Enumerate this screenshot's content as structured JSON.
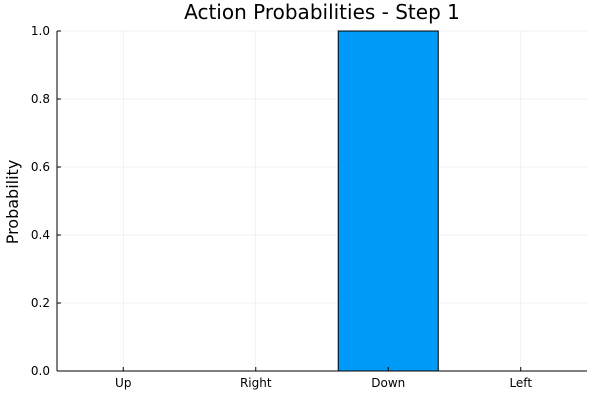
{
  "chart_data": {
    "type": "bar",
    "title": "Action Probabilities - Step 1",
    "xlabel": "",
    "ylabel": "Probability",
    "categories": [
      "Up",
      "Right",
      "Down",
      "Left"
    ],
    "values": [
      0.0,
      0.0,
      1.0,
      0.0
    ],
    "ylim": [
      0,
      1
    ],
    "yticks": [
      0.0,
      0.2,
      0.4,
      0.6,
      0.8,
      1.0
    ],
    "ytick_labels": [
      "0.0",
      "0.2",
      "0.4",
      "0.6",
      "0.8",
      "1.0"
    ],
    "grid": true,
    "legend": false,
    "bar_color": "#009af9"
  }
}
